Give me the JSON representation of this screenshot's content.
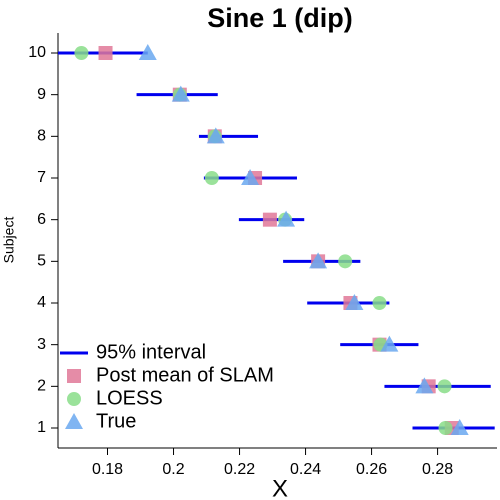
{
  "chart_data": {
    "type": "interval-dot",
    "title": "Sine 1 (dip)",
    "x_label": "X",
    "y_label": "Subject",
    "y": [
      1,
      2,
      3,
      4,
      5,
      6,
      7,
      8,
      9,
      10
    ],
    "series": [
      {
        "name": "95% interval",
        "color": "#0000ee",
        "marker": "line",
        "low": [
          0.2724,
          0.2639,
          0.2505,
          0.2405,
          0.2332,
          0.2198,
          0.2092,
          0.2077,
          0.1888,
          0.165
        ],
        "high": [
          0.2973,
          0.2961,
          0.2742,
          0.2654,
          0.2566,
          0.2396,
          0.2374,
          0.2256,
          0.2134,
          0.1922
        ]
      },
      {
        "name": "Post mean of SLAM",
        "color": "#e07898",
        "marker": "square",
        "x": [
          0.2843,
          0.2773,
          0.2624,
          0.2536,
          0.2438,
          0.2292,
          0.2247,
          0.2125,
          0.2019,
          0.1794
        ]
      },
      {
        "name": "LOESS",
        "color": "#88dd88",
        "marker": "circle",
        "x": [
          0.2824,
          0.2821,
          0.2627,
          0.2624,
          0.252,
          0.2338,
          0.2116,
          0.2125,
          0.2019,
          0.1721
        ]
      },
      {
        "name": "True",
        "color": "#6aa8f0",
        "marker": "triangle",
        "x": [
          0.2867,
          0.276,
          0.2654,
          0.2548,
          0.2438,
          0.2341,
          0.2232,
          0.2128,
          0.2022,
          0.1922
        ]
      }
    ],
    "xlim": [
      0.165,
      0.298
    ],
    "ylim": [
      0.52,
      10.48
    ],
    "xticks": [
      0.18,
      0.2,
      0.22,
      0.24,
      0.26,
      0.28
    ],
    "yticks": [
      1,
      2,
      3,
      4,
      5,
      6,
      7,
      8,
      9,
      10
    ],
    "legend": "bottom-left"
  }
}
